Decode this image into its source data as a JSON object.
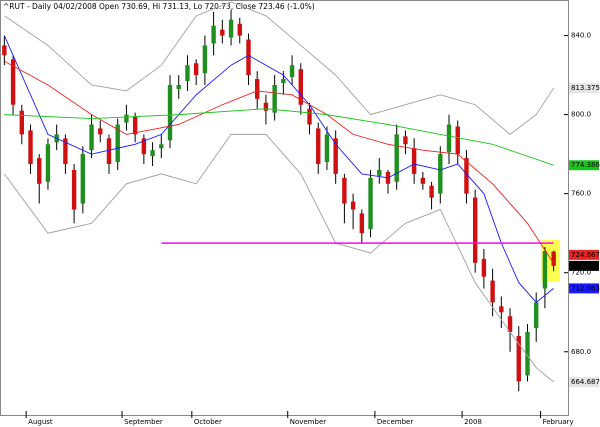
{
  "chart_data": {
    "type": "candlestick",
    "title": "^RUT - Daily 04/02/2008 Open 730.69, Hi 731.13, Lo 720.73, Close 723.46 (-1.0%)",
    "categories": [
      null,
      null,
      null,
      "August",
      null,
      null,
      null,
      null,
      null,
      null,
      null,
      null,
      null,
      null,
      "September",
      null,
      null,
      null,
      null,
      null,
      null,
      null,
      "October",
      null,
      null,
      null,
      null,
      null,
      null,
      null,
      null,
      null,
      null,
      "November",
      null,
      null,
      null,
      null,
      null,
      null,
      null,
      null,
      null,
      "December",
      null,
      null,
      null,
      null,
      null,
      null,
      null,
      null,
      null,
      "2008",
      null,
      null,
      null,
      null,
      null,
      null,
      null,
      null,
      "February",
      null
    ],
    "open": [
      835,
      828,
      802,
      792,
      778,
      766,
      786,
      788,
      772,
      755,
      782,
      793,
      788,
      776,
      796,
      799,
      788,
      779,
      783,
      787,
      813,
      817,
      826,
      821,
      836,
      843,
      839,
      846,
      838,
      818,
      806,
      801,
      816,
      819,
      823,
      803,
      793,
      776,
      788,
      768,
      756,
      750,
      742,
      769,
      771,
      766,
      789,
      783,
      768,
      764,
      760,
      781,
      794,
      778,
      758,
      727,
      716,
      703,
      698,
      688,
      668,
      692,
      712,
      730.69
    ],
    "high": [
      840,
      830,
      805,
      795,
      780,
      788,
      795,
      790,
      775,
      784,
      800,
      797,
      790,
      798,
      805,
      801,
      790,
      786,
      790,
      820,
      820,
      830,
      828,
      840,
      852,
      848,
      853,
      849,
      841,
      822,
      810,
      820,
      822,
      830,
      826,
      806,
      796,
      794,
      792,
      770,
      760,
      752,
      772,
      778,
      772,
      795,
      792,
      788,
      771,
      766,
      784,
      800,
      797,
      782,
      762,
      732,
      722,
      708,
      702,
      693,
      694,
      710,
      733,
      731.13
    ],
    "low": [
      825,
      800,
      785,
      770,
      755,
      762,
      782,
      770,
      745,
      750,
      778,
      786,
      770,
      772,
      792,
      786,
      775,
      774,
      778,
      783,
      808,
      812,
      815,
      815,
      830,
      836,
      835,
      836,
      815,
      803,
      795,
      797,
      810,
      815,
      800,
      790,
      770,
      772,
      765,
      745,
      742,
      735,
      738,
      765,
      760,
      762,
      780,
      765,
      762,
      752,
      755,
      775,
      775,
      755,
      720,
      712,
      698,
      692,
      680,
      660,
      665,
      685,
      702,
      720.73
    ],
    "close": [
      830,
      805,
      790,
      775,
      765,
      785,
      790,
      775,
      752,
      780,
      795,
      790,
      775,
      795,
      800,
      790,
      780,
      782,
      785,
      815,
      815,
      825,
      820,
      835,
      845,
      840,
      848,
      840,
      820,
      808,
      802,
      815,
      818,
      825,
      805,
      795,
      775,
      790,
      770,
      755,
      752,
      740,
      768,
      772,
      765,
      790,
      785,
      770,
      765,
      758,
      780,
      795,
      780,
      760,
      725,
      718,
      705,
      700,
      690,
      665,
      690,
      705,
      731,
      723.46
    ],
    "up_color": "#1f8f1f",
    "down_color": "#d01010",
    "overlays": [
      {
        "color": "#1a1aff",
        "x": [
          0,
          5,
          10,
          15,
          18,
          22,
          26,
          28,
          32,
          35,
          38,
          41,
          44,
          47,
          50,
          52,
          55,
          57,
          59,
          61,
          63
        ],
        "values": [
          840,
          790,
          780,
          785,
          790,
          810,
          825,
          830,
          820,
          805,
          785,
          770,
          768,
          775,
          772,
          775,
          760,
          735,
          715,
          705,
          712.063
        ]
      },
      {
        "color": "#ee2020",
        "x": [
          0,
          5,
          10,
          14,
          20,
          25,
          29,
          33,
          37,
          40,
          44,
          48,
          52,
          56,
          60,
          63
        ],
        "values": [
          827,
          815,
          800,
          790,
          795,
          805,
          812,
          810,
          800,
          790,
          785,
          782,
          780,
          765,
          745,
          724.667
        ]
      },
      {
        "color": "#19c519",
        "x": [
          0,
          10,
          20,
          30,
          37,
          44,
          50,
          56,
          63
        ],
        "values": [
          800,
          798,
          800,
          803,
          800,
          795,
          790,
          785,
          774.386
        ]
      },
      {
        "color": "#a0a0a0",
        "x": [
          0,
          5,
          10,
          14,
          18,
          22,
          26,
          30,
          34,
          38,
          42,
          46,
          50,
          54,
          58,
          61,
          63
        ],
        "values": [
          850,
          835,
          815,
          812,
          825,
          850,
          857,
          850,
          835,
          820,
          800,
          805,
          810,
          805,
          790,
          800,
          813.375
        ]
      },
      {
        "color": "#a0a0a0",
        "x": [
          0,
          5,
          10,
          14,
          18,
          22,
          26,
          30,
          34,
          38,
          42,
          46,
          50,
          54,
          58,
          61,
          63
        ],
        "values": [
          770,
          740,
          745,
          765,
          770,
          765,
          790,
          790,
          770,
          735,
          730,
          745,
          752,
          715,
          690,
          672,
          664.687
        ]
      },
      {
        "color": "#ff00ff",
        "x": [
          18,
          63
        ],
        "values": [
          735,
          735
        ]
      }
    ],
    "ylim": [
      648,
      858
    ],
    "yticks": [
      {
        "value": 680,
        "label": "680.0"
      },
      {
        "value": 720,
        "label": "720.0"
      },
      {
        "value": 760,
        "label": "760.0"
      },
      {
        "value": 800,
        "label": "800.0"
      },
      {
        "value": 840,
        "label": "840.0"
      }
    ]
  }
}
